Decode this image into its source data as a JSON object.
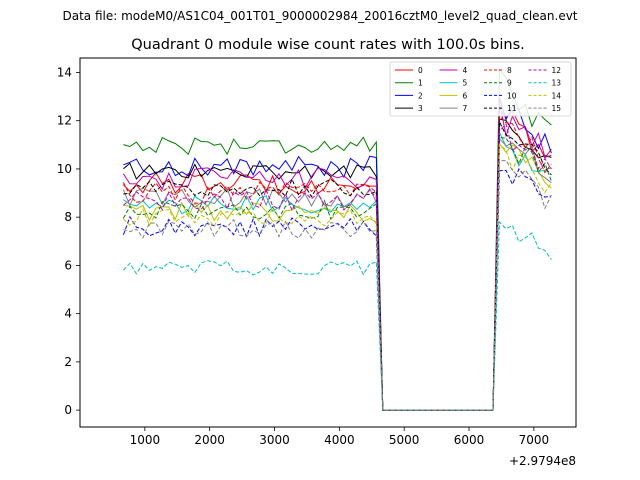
{
  "figure": {
    "suptitle": "Data file: modeM0/AS1C04_001T01_9000002984_20016cztM0_level2_quad_clean.evt"
  },
  "chart_data": {
    "type": "line",
    "title": "Quadrant 0 module wise count rates with 100.0s bins.",
    "xlabel": "",
    "ylabel": "",
    "x_offset_label": "+2.9794e8",
    "xlim": [
      0,
      7650
    ],
    "ylim": [
      -0.7,
      14.6
    ],
    "xticks": [
      1000,
      2000,
      3000,
      4000,
      5000,
      6000,
      7000
    ],
    "yticks": [
      0,
      2,
      4,
      6,
      8,
      10,
      12,
      14
    ],
    "grid": false,
    "legend_position": "top-right",
    "x": [
      670,
      770,
      870,
      970,
      1070,
      1170,
      1270,
      1370,
      1470,
      1570,
      1670,
      1770,
      1870,
      1970,
      2070,
      2170,
      2270,
      2370,
      2470,
      2570,
      2670,
      2770,
      2870,
      2970,
      3070,
      3170,
      3270,
      3370,
      3470,
      3570,
      3670,
      3770,
      3870,
      3970,
      4070,
      4170,
      4270,
      4370,
      4470,
      4570,
      4670,
      4770,
      4870,
      4970,
      5070,
      5170,
      5270,
      5370,
      5470,
      5570,
      5670,
      5770,
      5870,
      5970,
      6070,
      6170,
      6270,
      6370,
      6470,
      6570,
      6670,
      6770,
      6870,
      6970,
      7070,
      7170,
      7270
    ],
    "gap_start_index": 40,
    "gap_end_index": 57,
    "series": [
      {
        "name": "0",
        "color": "#ff0000",
        "dash": "solid",
        "level": 9.4,
        "noise": 0.45,
        "end": 11.4
      },
      {
        "name": "1",
        "color": "#008000",
        "dash": "solid",
        "level": 11.0,
        "noise": 0.4,
        "end": 12.5
      },
      {
        "name": "2",
        "color": "#0000ff",
        "dash": "solid",
        "level": 10.1,
        "noise": 0.45,
        "end": 11.6
      },
      {
        "name": "3",
        "color": "#000000",
        "dash": "solid",
        "level": 9.9,
        "noise": 0.35,
        "end": 11.0
      },
      {
        "name": "4",
        "color": "#bf00bf",
        "dash": "solid",
        "level": 9.6,
        "noise": 0.45,
        "end": 11.2
      },
      {
        "name": "5",
        "color": "#00bfbf",
        "dash": "solid",
        "level": 8.5,
        "noise": 0.4,
        "end": 10.2
      },
      {
        "name": "6",
        "color": "#bfbf00",
        "dash": "solid",
        "level": 8.2,
        "noise": 0.4,
        "end": 10.0
      },
      {
        "name": "7",
        "color": "#808080",
        "dash": "solid",
        "level": 8.8,
        "noise": 0.4,
        "end": 10.5
      },
      {
        "name": "8",
        "color": "#ff0000",
        "dash": "dashed",
        "level": 9.0,
        "noise": 0.45,
        "end": 10.9
      },
      {
        "name": "9",
        "color": "#008000",
        "dash": "dashed",
        "level": 8.3,
        "noise": 0.4,
        "end": 10.3
      },
      {
        "name": "10",
        "color": "#0000ff",
        "dash": "dashed",
        "level": 7.6,
        "noise": 0.45,
        "end": 9.2
      },
      {
        "name": "11",
        "color": "#000000",
        "dash": "dashed",
        "level": 9.2,
        "noise": 0.4,
        "end": 10.7
      },
      {
        "name": "12",
        "color": "#bf00bf",
        "dash": "dashed",
        "level": 8.7,
        "noise": 0.45,
        "end": 10.6
      },
      {
        "name": "13",
        "color": "#00bfbf",
        "dash": "dashed",
        "level": 5.9,
        "noise": 0.3,
        "end": 7.1
      },
      {
        "name": "14",
        "color": "#bfbf00",
        "dash": "dashed",
        "level": 8.0,
        "noise": 0.4,
        "end": 9.8
      },
      {
        "name": "15",
        "color": "#808080",
        "dash": "dashed",
        "level": 7.5,
        "noise": 0.4,
        "end": 9.4
      }
    ]
  }
}
